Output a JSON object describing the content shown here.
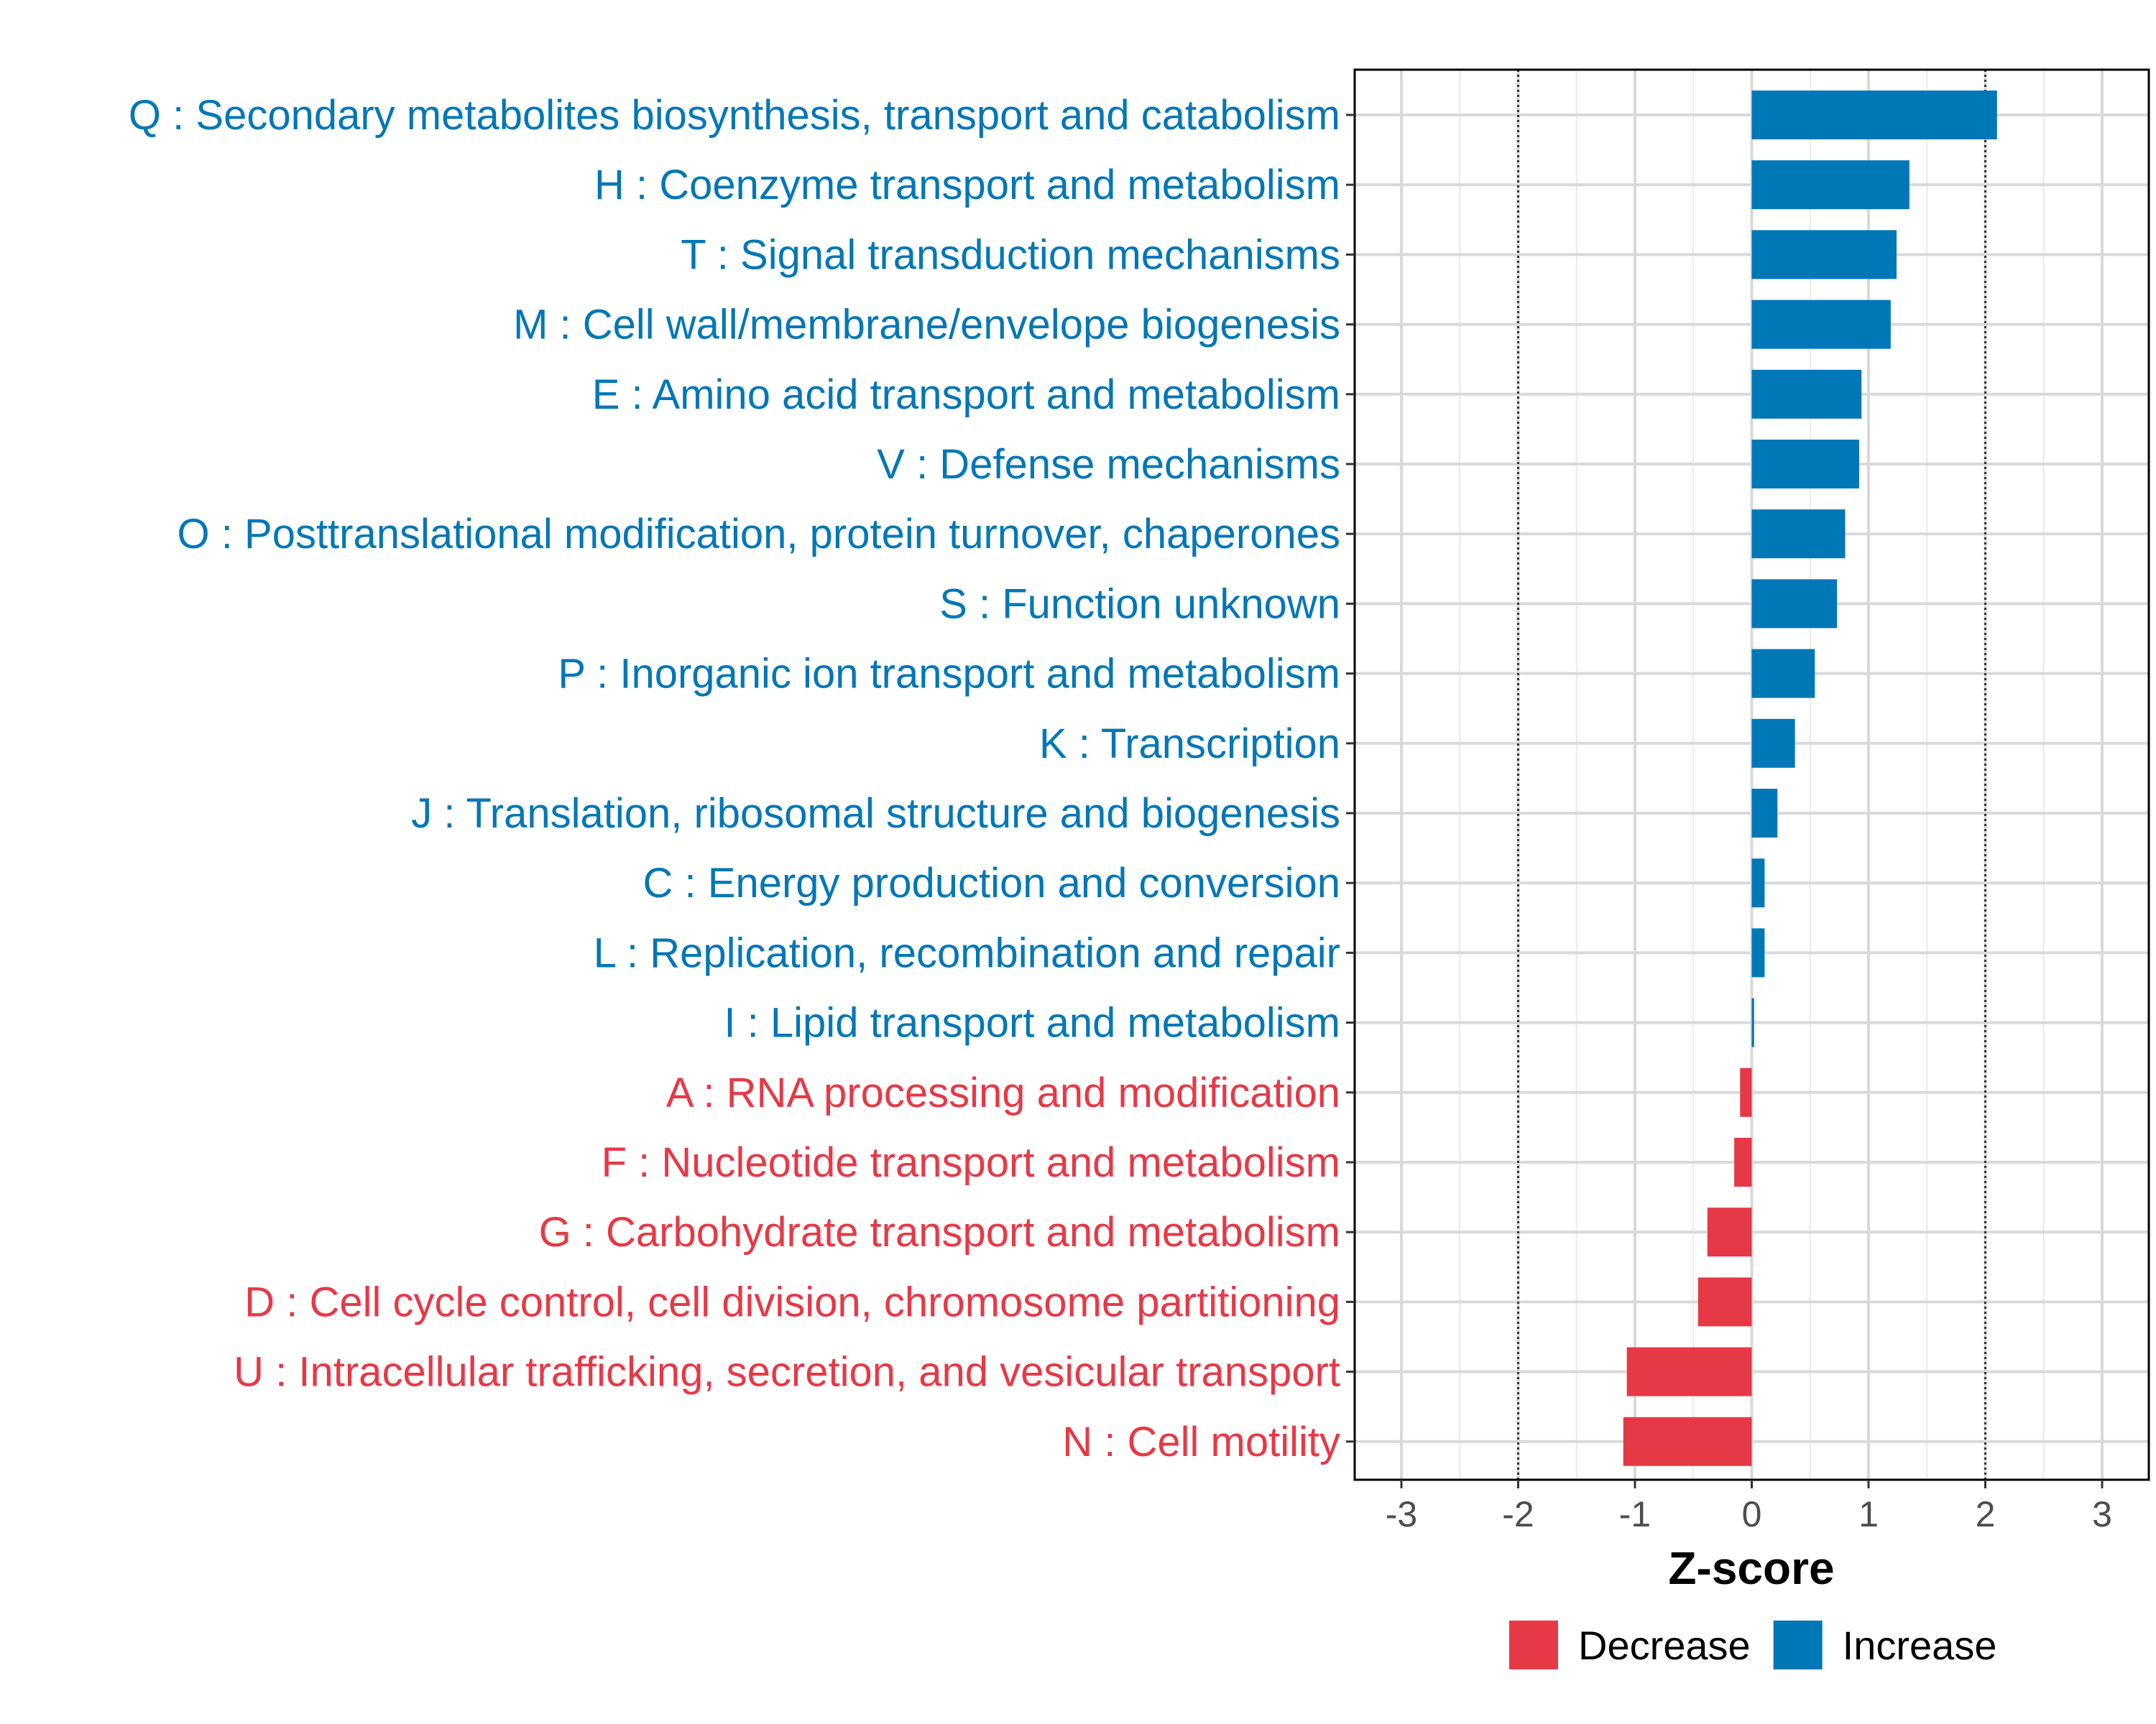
{
  "chart_data": {
    "type": "bar",
    "orientation": "horizontal",
    "title": "",
    "xlabel": "Z-score",
    "ylabel": "",
    "xlim": [
      -3.4,
      3.4
    ],
    "xticks": [
      -3,
      -2,
      -1,
      0,
      1,
      2,
      3
    ],
    "reference_lines": [
      -2,
      2
    ],
    "grid": true,
    "categories": [
      {
        "label": "Q : Secondary metabolites biosynthesis, transport and catabolism",
        "value": 2.1,
        "group": "Increase"
      },
      {
        "label": "H : Coenzyme transport and metabolism",
        "value": 1.35,
        "group": "Increase"
      },
      {
        "label": "T : Signal transduction mechanisms",
        "value": 1.24,
        "group": "Increase"
      },
      {
        "label": "M : Cell wall/membrane/envelope biogenesis",
        "value": 1.19,
        "group": "Increase"
      },
      {
        "label": "E : Amino acid transport and metabolism",
        "value": 0.94,
        "group": "Increase"
      },
      {
        "label": "V : Defense mechanisms",
        "value": 0.92,
        "group": "Increase"
      },
      {
        "label": "O : Posttranslational modification, protein turnover, chaperones",
        "value": 0.8,
        "group": "Increase"
      },
      {
        "label": "S : Function unknown",
        "value": 0.73,
        "group": "Increase"
      },
      {
        "label": "P : Inorganic ion transport and metabolism",
        "value": 0.54,
        "group": "Increase"
      },
      {
        "label": "K : Transcription",
        "value": 0.37,
        "group": "Increase"
      },
      {
        "label": "J : Translation, ribosomal structure and biogenesis",
        "value": 0.22,
        "group": "Increase"
      },
      {
        "label": "C : Energy production and conversion",
        "value": 0.11,
        "group": "Increase"
      },
      {
        "label": "L : Replication, recombination and repair",
        "value": 0.11,
        "group": "Increase"
      },
      {
        "label": "I : Lipid transport and metabolism",
        "value": 0.02,
        "group": "Increase"
      },
      {
        "label": "A : RNA processing and modification",
        "value": -0.1,
        "group": "Decrease"
      },
      {
        "label": "F : Nucleotide transport and metabolism",
        "value": -0.15,
        "group": "Decrease"
      },
      {
        "label": "G : Carbohydrate transport and metabolism",
        "value": -0.38,
        "group": "Decrease"
      },
      {
        "label": "D : Cell cycle control, cell division, chromosome partitioning",
        "value": -0.46,
        "group": "Decrease"
      },
      {
        "label": "U : Intracellular trafficking, secretion, and vesicular transport",
        "value": -1.07,
        "group": "Decrease"
      },
      {
        "label": "N : Cell motility",
        "value": -1.1,
        "group": "Decrease"
      }
    ],
    "legend": {
      "placement": "bottom",
      "items": [
        {
          "label": "Decrease",
          "color": "#E63946"
        },
        {
          "label": "Increase",
          "color": "#0077B6"
        }
      ]
    },
    "colors": {
      "Decrease": "#E63946",
      "Increase": "#0077B6"
    }
  }
}
